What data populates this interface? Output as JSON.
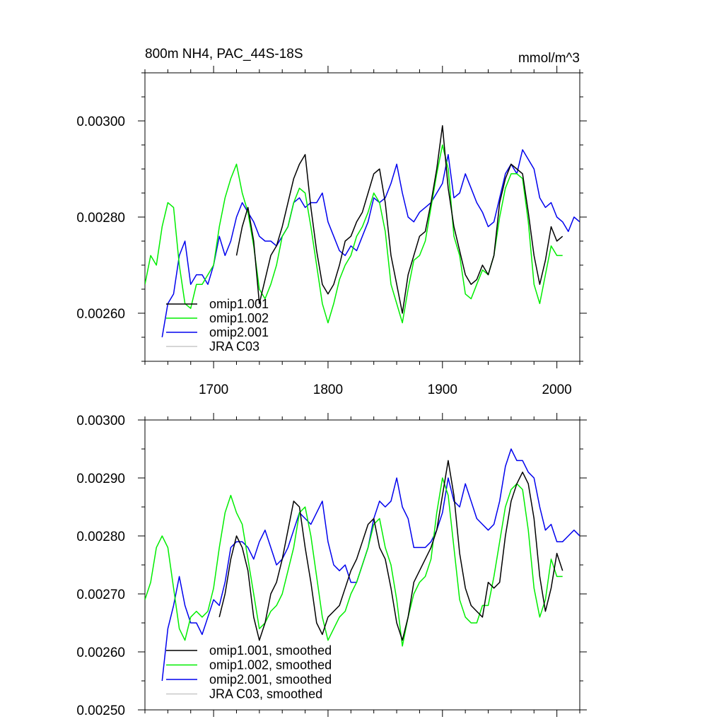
{
  "chart_data": [
    {
      "type": "line",
      "title": "800m NH4, PAC_44S-18S",
      "units": "mmol/m^3",
      "xlim": [
        1640,
        2020
      ],
      "ylim": [
        0.0025,
        0.0031
      ],
      "xticks": [
        1700,
        1800,
        1900,
        2000
      ],
      "xtick_labels": [
        "1700",
        "1800",
        "1900",
        "2000"
      ],
      "yticks": [
        0.0026,
        0.0028,
        0.003
      ],
      "ytick_labels": [
        "0.00260",
        "0.00280",
        "0.00300"
      ],
      "grid": false,
      "legend_position": "bottom-left",
      "series": [
        {
          "name": "omip1.001",
          "color": "#000000",
          "x": [
            1720,
            1725,
            1730,
            1735,
            1740,
            1745,
            1750,
            1755,
            1760,
            1765,
            1770,
            1775,
            1780,
            1785,
            1790,
            1795,
            1800,
            1805,
            1810,
            1815,
            1820,
            1825,
            1830,
            1835,
            1840,
            1845,
            1850,
            1855,
            1860,
            1865,
            1870,
            1875,
            1880,
            1885,
            1890,
            1895,
            1900,
            1905,
            1910,
            1915,
            1920,
            1925,
            1930,
            1935,
            1940,
            1945,
            1950,
            1955,
            1960,
            1965,
            1970,
            1975,
            1980,
            1985,
            1990,
            1995,
            2000,
            2005
          ],
          "values": [
            0.00272,
            0.00278,
            0.00282,
            0.00275,
            0.00262,
            0.00267,
            0.00272,
            0.00274,
            0.00278,
            0.00283,
            0.00288,
            0.00291,
            0.00293,
            0.00282,
            0.00273,
            0.00266,
            0.00264,
            0.00266,
            0.0027,
            0.00275,
            0.00276,
            0.00279,
            0.00281,
            0.00285,
            0.00289,
            0.0029,
            0.00283,
            0.00272,
            0.00266,
            0.0026,
            0.00268,
            0.00272,
            0.00276,
            0.00277,
            0.00283,
            0.0029,
            0.00299,
            0.00286,
            0.00278,
            0.00273,
            0.00268,
            0.00266,
            0.00267,
            0.0027,
            0.00268,
            0.00272,
            0.00283,
            0.00288,
            0.00291,
            0.0029,
            0.00289,
            0.00281,
            0.00272,
            0.00266,
            0.00271,
            0.00278,
            0.00275,
            0.00276
          ]
        },
        {
          "name": "omip1.002",
          "color": "#00ee00",
          "x": [
            1640,
            1645,
            1650,
            1655,
            1660,
            1665,
            1670,
            1675,
            1680,
            1685,
            1690,
            1695,
            1700,
            1705,
            1710,
            1715,
            1720,
            1725,
            1730,
            1735,
            1740,
            1745,
            1750,
            1755,
            1760,
            1765,
            1770,
            1775,
            1780,
            1785,
            1790,
            1795,
            1800,
            1805,
            1810,
            1815,
            1820,
            1825,
            1830,
            1835,
            1840,
            1845,
            1850,
            1855,
            1860,
            1865,
            1870,
            1875,
            1880,
            1885,
            1890,
            1895,
            1900,
            1905,
            1910,
            1915,
            1920,
            1925,
            1930,
            1935,
            1940,
            1945,
            1950,
            1955,
            1960,
            1965,
            1970,
            1975,
            1980,
            1985,
            1990,
            1995,
            2000,
            2005
          ],
          "values": [
            0.00266,
            0.00272,
            0.0027,
            0.00278,
            0.00283,
            0.00282,
            0.0027,
            0.00262,
            0.00261,
            0.00266,
            0.00266,
            0.00268,
            0.0027,
            0.00278,
            0.00284,
            0.00288,
            0.00291,
            0.00285,
            0.00281,
            0.00274,
            0.00265,
            0.00263,
            0.00266,
            0.0027,
            0.00276,
            0.00278,
            0.00283,
            0.00286,
            0.00285,
            0.00278,
            0.0027,
            0.00262,
            0.00258,
            0.00262,
            0.00267,
            0.0027,
            0.00272,
            0.00276,
            0.00278,
            0.00281,
            0.00285,
            0.00283,
            0.00277,
            0.00266,
            0.00262,
            0.00258,
            0.00265,
            0.00271,
            0.00272,
            0.00275,
            0.00282,
            0.00289,
            0.00295,
            0.0029,
            0.00276,
            0.00272,
            0.00264,
            0.00263,
            0.00266,
            0.00269,
            0.00268,
            0.00272,
            0.0028,
            0.00286,
            0.00289,
            0.00289,
            0.00288,
            0.00279,
            0.00266,
            0.00262,
            0.00268,
            0.00274,
            0.00272,
            0.00272
          ]
        },
        {
          "name": "omip2.001",
          "color": "#0000ee",
          "x": [
            1655,
            1660,
            1665,
            1670,
            1675,
            1680,
            1685,
            1690,
            1695,
            1700,
            1705,
            1710,
            1715,
            1720,
            1725,
            1730,
            1735,
            1740,
            1745,
            1750,
            1755,
            1760,
            1765,
            1770,
            1775,
            1780,
            1785,
            1790,
            1795,
            1800,
            1805,
            1810,
            1815,
            1820,
            1825,
            1830,
            1835,
            1840,
            1845,
            1850,
            1855,
            1860,
            1865,
            1870,
            1875,
            1880,
            1885,
            1890,
            1895,
            1900,
            1905,
            1910,
            1915,
            1920,
            1925,
            1930,
            1935,
            1940,
            1945,
            1950,
            1955,
            1960,
            1965,
            1970,
            1975,
            1980,
            1985,
            1990,
            1995,
            2000,
            2005,
            2010,
            2015,
            2020
          ],
          "values": [
            0.00255,
            0.00262,
            0.00264,
            0.00272,
            0.00275,
            0.00266,
            0.00268,
            0.00268,
            0.00266,
            0.0027,
            0.00276,
            0.00272,
            0.00275,
            0.0028,
            0.00283,
            0.00281,
            0.00279,
            0.00276,
            0.00275,
            0.00275,
            0.00274,
            0.00276,
            0.00278,
            0.00283,
            0.00284,
            0.00282,
            0.00283,
            0.00283,
            0.00285,
            0.00279,
            0.00276,
            0.00273,
            0.00272,
            0.00274,
            0.00273,
            0.00276,
            0.00279,
            0.00284,
            0.00283,
            0.00284,
            0.00287,
            0.00291,
            0.00285,
            0.0028,
            0.00279,
            0.00281,
            0.00282,
            0.00283,
            0.00285,
            0.00287,
            0.00293,
            0.00284,
            0.00285,
            0.00289,
            0.00286,
            0.00283,
            0.00281,
            0.00278,
            0.00279,
            0.00284,
            0.00289,
            0.00291,
            0.00289,
            0.00294,
            0.00292,
            0.0029,
            0.00284,
            0.00282,
            0.00283,
            0.0028,
            0.00279,
            0.00277,
            0.0028,
            0.00279
          ]
        },
        {
          "name": "JRA C03",
          "color": "#c8c8c8",
          "x": [],
          "values": []
        }
      ]
    },
    {
      "type": "line",
      "title": "",
      "units": "",
      "xlim": [
        1640,
        2020
      ],
      "ylim": [
        0.0025,
        0.003
      ],
      "xticks": [
        1700,
        1800,
        1900,
        2000
      ],
      "xtick_labels": [],
      "yticks": [
        0.0025,
        0.0026,
        0.0027,
        0.0028,
        0.0029,
        0.003
      ],
      "ytick_labels": [
        "0.00250",
        "0.00260",
        "0.00270",
        "0.00280",
        "0.00290",
        "0.00300"
      ],
      "grid": false,
      "legend_position": "bottom-left",
      "series": [
        {
          "name": "omip1.001, smoothed",
          "color": "#000000",
          "x": [
            1705,
            1710,
            1715,
            1720,
            1725,
            1730,
            1735,
            1740,
            1745,
            1750,
            1755,
            1760,
            1765,
            1770,
            1775,
            1780,
            1785,
            1790,
            1795,
            1800,
            1805,
            1810,
            1815,
            1820,
            1825,
            1830,
            1835,
            1840,
            1845,
            1850,
            1855,
            1860,
            1865,
            1870,
            1875,
            1880,
            1885,
            1890,
            1895,
            1900,
            1905,
            1910,
            1915,
            1920,
            1925,
            1930,
            1935,
            1940,
            1945,
            1950,
            1955,
            1960,
            1965,
            1970,
            1975,
            1980,
            1985,
            1990,
            1995,
            2000,
            2005
          ],
          "values": [
            0.00266,
            0.0027,
            0.00276,
            0.0028,
            0.00278,
            0.00274,
            0.00266,
            0.00262,
            0.00265,
            0.0027,
            0.00272,
            0.00276,
            0.00281,
            0.00286,
            0.00285,
            0.00278,
            0.00272,
            0.00265,
            0.00263,
            0.00266,
            0.00267,
            0.00268,
            0.00271,
            0.00274,
            0.00276,
            0.00279,
            0.00282,
            0.00283,
            0.00278,
            0.00276,
            0.00271,
            0.00265,
            0.00262,
            0.00266,
            0.00272,
            0.00274,
            0.00276,
            0.00278,
            0.00281,
            0.00287,
            0.00293,
            0.00287,
            0.00277,
            0.00271,
            0.00268,
            0.00267,
            0.00266,
            0.00272,
            0.00271,
            0.00272,
            0.0028,
            0.00286,
            0.00289,
            0.00291,
            0.00289,
            0.00283,
            0.00273,
            0.00267,
            0.00271,
            0.00277,
            0.00274
          ]
        },
        {
          "name": "omip1.002, smoothed",
          "color": "#00ee00",
          "x": [
            1640,
            1645,
            1650,
            1655,
            1660,
            1665,
            1670,
            1675,
            1680,
            1685,
            1690,
            1695,
            1700,
            1705,
            1710,
            1715,
            1720,
            1725,
            1730,
            1735,
            1740,
            1745,
            1750,
            1755,
            1760,
            1765,
            1770,
            1775,
            1780,
            1785,
            1790,
            1795,
            1800,
            1805,
            1810,
            1815,
            1820,
            1825,
            1830,
            1835,
            1840,
            1845,
            1850,
            1855,
            1860,
            1865,
            1870,
            1875,
            1880,
            1885,
            1890,
            1895,
            1900,
            1905,
            1910,
            1915,
            1920,
            1925,
            1930,
            1935,
            1940,
            1945,
            1950,
            1955,
            1960,
            1965,
            1970,
            1975,
            1980,
            1985,
            1990,
            1995,
            2000,
            2005
          ],
          "values": [
            0.00269,
            0.00272,
            0.00278,
            0.0028,
            0.00278,
            0.00271,
            0.00264,
            0.00262,
            0.00266,
            0.00267,
            0.00266,
            0.00267,
            0.00271,
            0.00278,
            0.00284,
            0.00287,
            0.00284,
            0.00282,
            0.00276,
            0.0027,
            0.00264,
            0.00265,
            0.00267,
            0.00268,
            0.0027,
            0.00274,
            0.00278,
            0.00284,
            0.00285,
            0.0028,
            0.00273,
            0.00266,
            0.00262,
            0.00264,
            0.00266,
            0.00267,
            0.0027,
            0.00272,
            0.00275,
            0.00278,
            0.00282,
            0.00283,
            0.00278,
            0.00275,
            0.00269,
            0.00261,
            0.00266,
            0.0027,
            0.00272,
            0.00273,
            0.00276,
            0.00284,
            0.0029,
            0.00287,
            0.00278,
            0.00269,
            0.00266,
            0.00265,
            0.00265,
            0.00268,
            0.00268,
            0.00273,
            0.00279,
            0.00285,
            0.00288,
            0.00289,
            0.00288,
            0.00281,
            0.00271,
            0.00266,
            0.00269,
            0.00276,
            0.00273,
            0.00273
          ]
        },
        {
          "name": "omip2.001, smoothed",
          "color": "#0000ee",
          "x": [
            1655,
            1660,
            1665,
            1670,
            1675,
            1680,
            1685,
            1690,
            1695,
            1700,
            1705,
            1710,
            1715,
            1720,
            1725,
            1730,
            1735,
            1740,
            1745,
            1750,
            1755,
            1760,
            1765,
            1770,
            1775,
            1780,
            1785,
            1790,
            1795,
            1800,
            1805,
            1810,
            1815,
            1820,
            1825,
            1830,
            1835,
            1840,
            1845,
            1850,
            1855,
            1860,
            1865,
            1870,
            1875,
            1880,
            1885,
            1890,
            1895,
            1900,
            1905,
            1910,
            1915,
            1920,
            1925,
            1930,
            1935,
            1940,
            1945,
            1950,
            1955,
            1960,
            1965,
            1970,
            1975,
            1980,
            1985,
            1990,
            1995,
            2000,
            2005,
            2010,
            2015,
            2020
          ],
          "values": [
            0.00255,
            0.00264,
            0.00268,
            0.00273,
            0.00268,
            0.00265,
            0.00265,
            0.00263,
            0.00266,
            0.00269,
            0.00268,
            0.00272,
            0.00278,
            0.00279,
            0.00279,
            0.00278,
            0.00276,
            0.00279,
            0.00281,
            0.00278,
            0.00275,
            0.00276,
            0.00278,
            0.00281,
            0.00284,
            0.00283,
            0.00282,
            0.00284,
            0.00286,
            0.00279,
            0.00275,
            0.00274,
            0.00275,
            0.00272,
            0.00272,
            0.00275,
            0.00278,
            0.00283,
            0.00286,
            0.00285,
            0.00286,
            0.0029,
            0.00285,
            0.00283,
            0.00278,
            0.00278,
            0.00278,
            0.00279,
            0.00281,
            0.00284,
            0.0029,
            0.00286,
            0.00285,
            0.00289,
            0.00286,
            0.00283,
            0.00282,
            0.00281,
            0.00282,
            0.00286,
            0.00292,
            0.00295,
            0.00293,
            0.00293,
            0.00291,
            0.0029,
            0.00285,
            0.00281,
            0.00282,
            0.00279,
            0.00279,
            0.0028,
            0.00281,
            0.0028
          ]
        },
        {
          "name": "JRA C03, smoothed",
          "color": "#c8c8c8",
          "x": [],
          "values": []
        }
      ]
    }
  ]
}
